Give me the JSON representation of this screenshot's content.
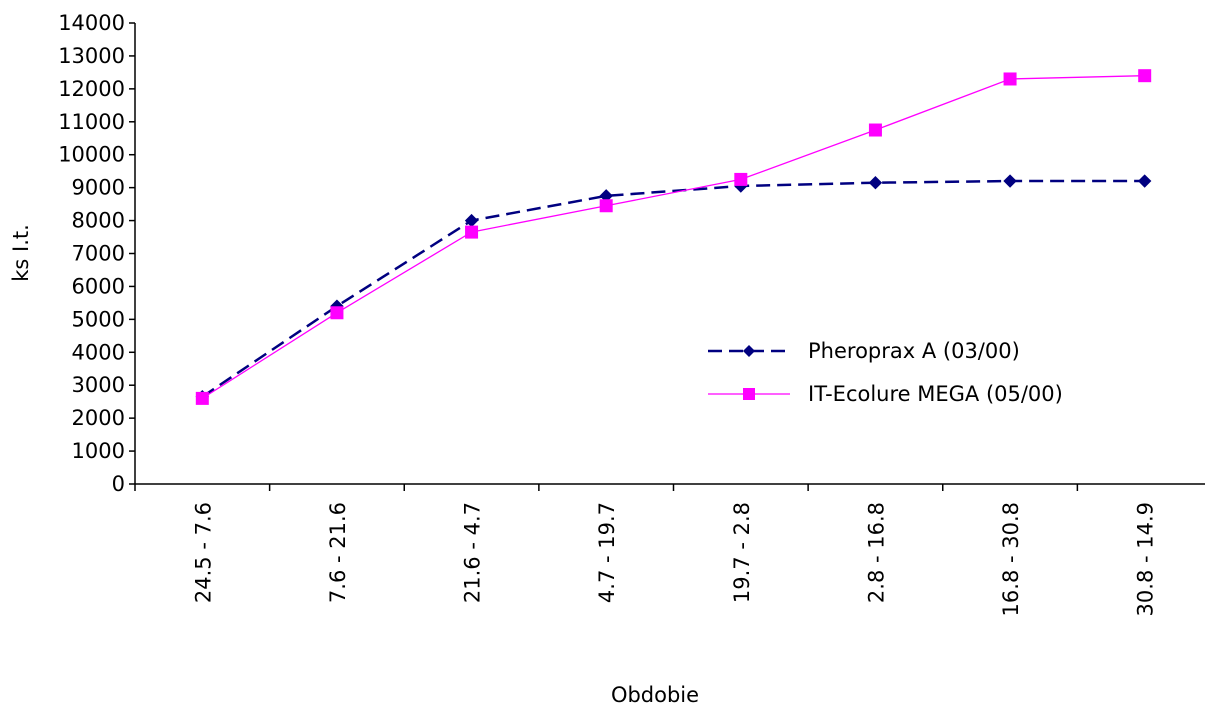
{
  "chart_data": {
    "type": "line",
    "title": "",
    "xlabel": "Obdobie",
    "ylabel": "ks I.t.",
    "ylim": [
      0,
      14000
    ],
    "yticks": [
      0,
      1000,
      2000,
      3000,
      4000,
      5000,
      6000,
      7000,
      8000,
      9000,
      10000,
      11000,
      12000,
      13000,
      14000
    ],
    "categories": [
      "24.5 -   7.6",
      "7.6 - 21.6",
      "21.6  -  4.7",
      "4.7  - 19.7",
      "19.7  -   2.8",
      "2.8  - 16.8",
      "16.8  - 30.8",
      "30.8  - 14.9"
    ],
    "grid": false,
    "legend_position": "right",
    "series": [
      {
        "name": " Pheroprax A (03/00)",
        "color": "#000080",
        "line_style": "dashed",
        "marker": "diamond",
        "values": [
          2650,
          5400,
          8000,
          8750,
          9050,
          9150,
          9200,
          9200
        ]
      },
      {
        "name": "IT-Ecolure MEGA (05/00)",
        "color": "#ff00ff",
        "line_style": "solid",
        "marker": "square",
        "values": [
          2600,
          5200,
          7650,
          8450,
          9250,
          10750,
          12300,
          12400
        ]
      }
    ]
  }
}
